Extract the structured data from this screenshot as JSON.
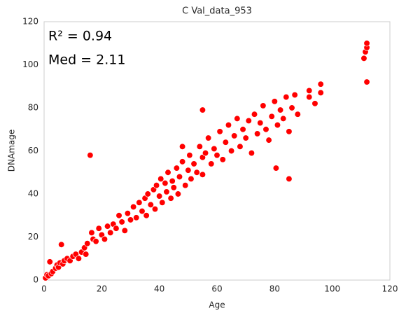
{
  "chart_data": {
    "type": "scatter",
    "title": "C Val_data_953",
    "x_label": "Age",
    "y_label": "DNAmage",
    "annotations": [
      "R² = 0.94",
      "Med = 2.11"
    ],
    "color": "#ff0000",
    "xlim": [
      0,
      120
    ],
    "xticks": [
      0,
      20,
      40,
      60,
      80,
      100,
      120
    ],
    "ylim": [
      0,
      120
    ],
    "yticks": [
      0,
      20,
      40,
      60,
      80,
      100,
      120
    ],
    "grid": false,
    "x": [
      0.5,
      1,
      1.5,
      2,
      2.5,
      3,
      4,
      4.5,
      5,
      5.5,
      6,
      6.5,
      7,
      8,
      9,
      10,
      11,
      12,
      13,
      14,
      14.5,
      15,
      16,
      16.5,
      17,
      18,
      19,
      20,
      21,
      22,
      23,
      24,
      25,
      26,
      27,
      28,
      29,
      30,
      31,
      32,
      33,
      34,
      35,
      35.5,
      36,
      37,
      38,
      38.5,
      39,
      40,
      40.5,
      41,
      42,
      42.5,
      43,
      44,
      44.5,
      45,
      46,
      46.5,
      47,
      48,
      49,
      50,
      50.5,
      51,
      52,
      53,
      54,
      55,
      55,
      56,
      57,
      58,
      59,
      60,
      61,
      62,
      63,
      64,
      65,
      66,
      67,
      68,
      69,
      70,
      71,
      72,
      73,
      74,
      75,
      76,
      77,
      78,
      79,
      80,
      80.5,
      81,
      82,
      83,
      84,
      85,
      85,
      86,
      87,
      88,
      92,
      92,
      94,
      96,
      96,
      111,
      111.5,
      112,
      112,
      112,
      55,
      48
    ],
    "y": [
      1,
      2.5,
      2,
      8.5,
      3,
      4,
      5.5,
      7,
      6,
      8,
      16.5,
      7.5,
      9,
      10,
      9,
      11,
      12,
      10,
      13,
      15,
      12,
      17,
      58,
      22,
      19,
      18,
      24,
      21,
      19,
      25,
      22,
      26,
      24,
      30,
      27,
      23,
      31,
      28,
      34,
      29,
      36,
      32,
      38,
      30,
      40,
      35,
      42,
      33,
      44,
      39,
      47,
      36,
      45,
      41,
      50,
      38,
      46,
      43,
      52,
      40,
      48,
      55,
      44,
      51,
      58,
      47,
      54,
      50,
      62,
      49,
      57,
      59,
      66,
      54,
      61,
      58,
      69,
      56,
      64,
      72,
      60,
      67,
      75,
      62,
      70,
      66,
      74,
      59,
      77,
      68,
      73,
      81,
      70,
      65,
      76,
      83,
      52,
      72,
      79,
      75,
      85,
      47,
      69,
      80,
      86,
      77,
      88,
      85,
      82,
      91,
      87,
      103,
      106,
      108,
      110,
      92,
      79,
      62
    ]
  }
}
